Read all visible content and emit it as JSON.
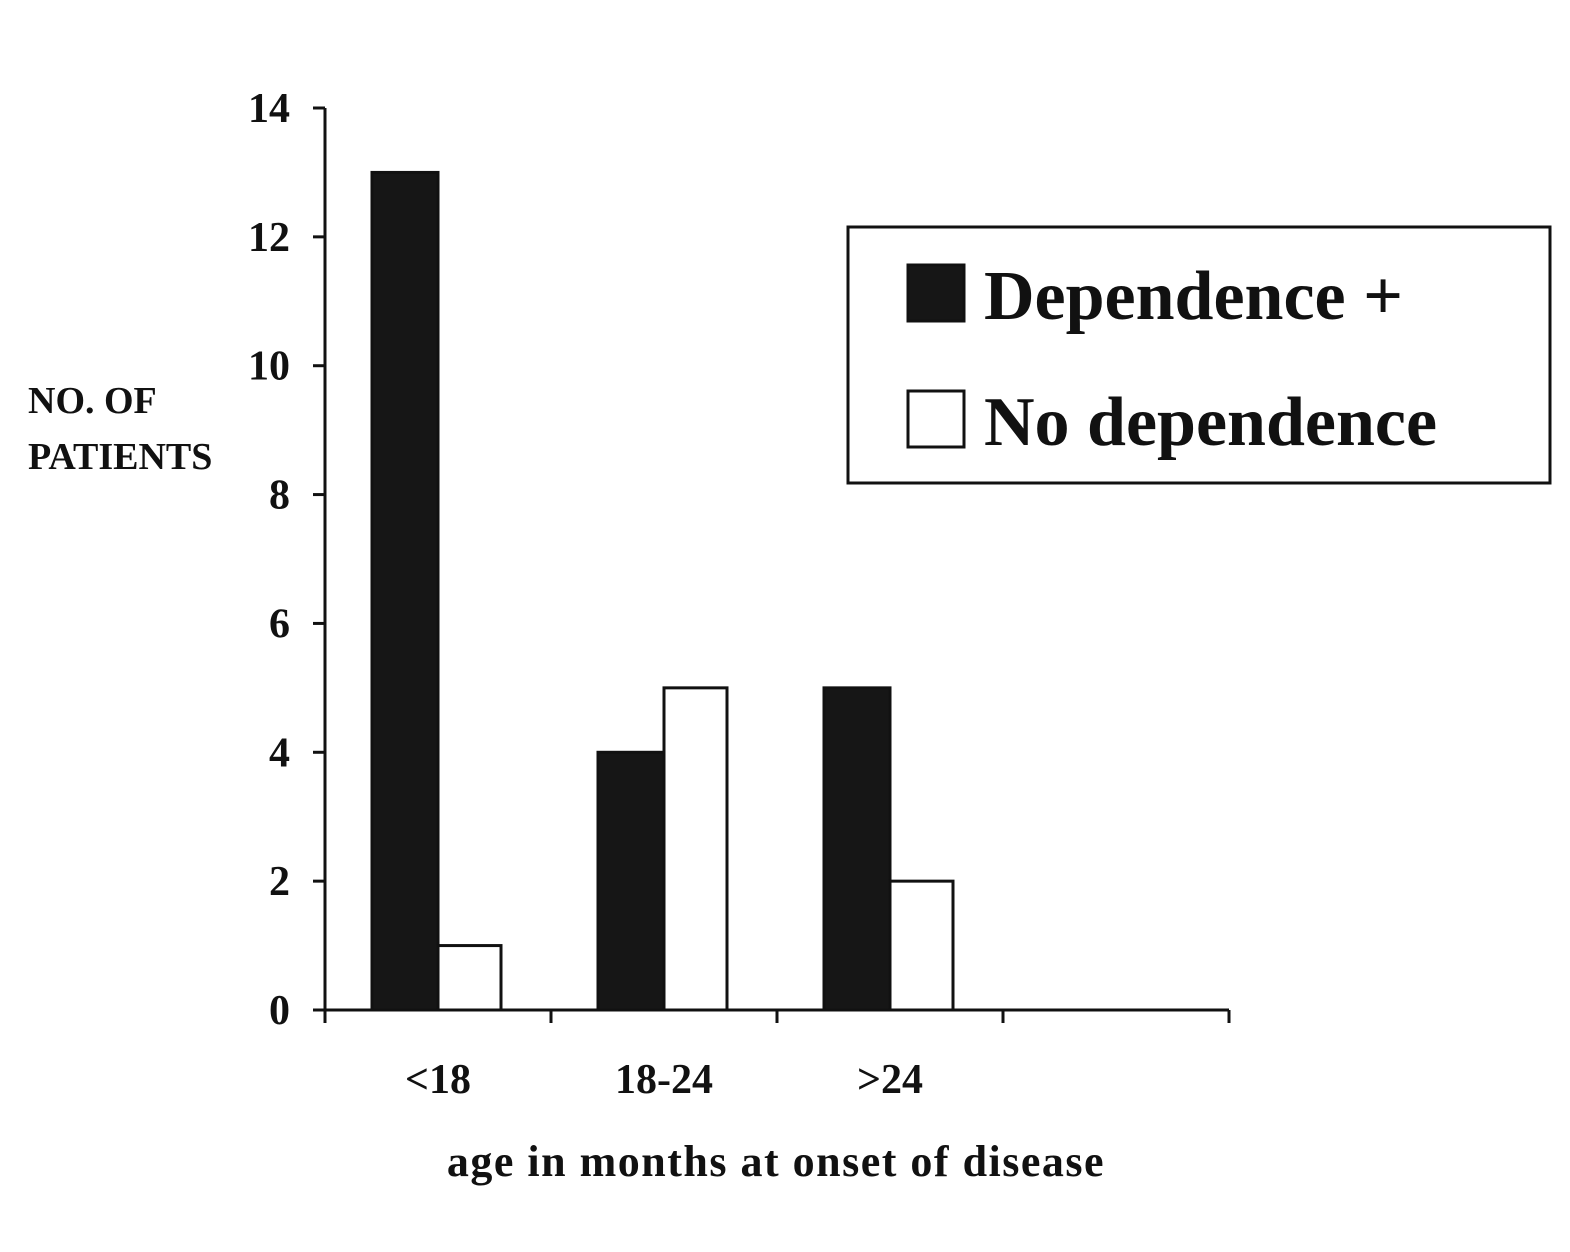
{
  "chart_data": {
    "type": "bar",
    "title": "",
    "ylabel_lines": [
      "NO. OF",
      "PATIENTS"
    ],
    "xlabel": "age in months at onset of disease",
    "categories": [
      "<18",
      "18-24",
      ">24"
    ],
    "ylim": [
      0,
      14
    ],
    "yticks": [
      "0",
      "2",
      "4",
      "6",
      "8",
      "10",
      "12",
      "14"
    ],
    "series": [
      {
        "name": "Dependence +",
        "values": [
          13,
          4,
          5
        ],
        "color": "#161616"
      },
      {
        "name": "No dependence",
        "values": [
          1,
          5,
          2
        ],
        "color": "#ffffff"
      }
    ],
    "grid": false,
    "legend": {
      "position": "top-right",
      "framed": true
    }
  }
}
